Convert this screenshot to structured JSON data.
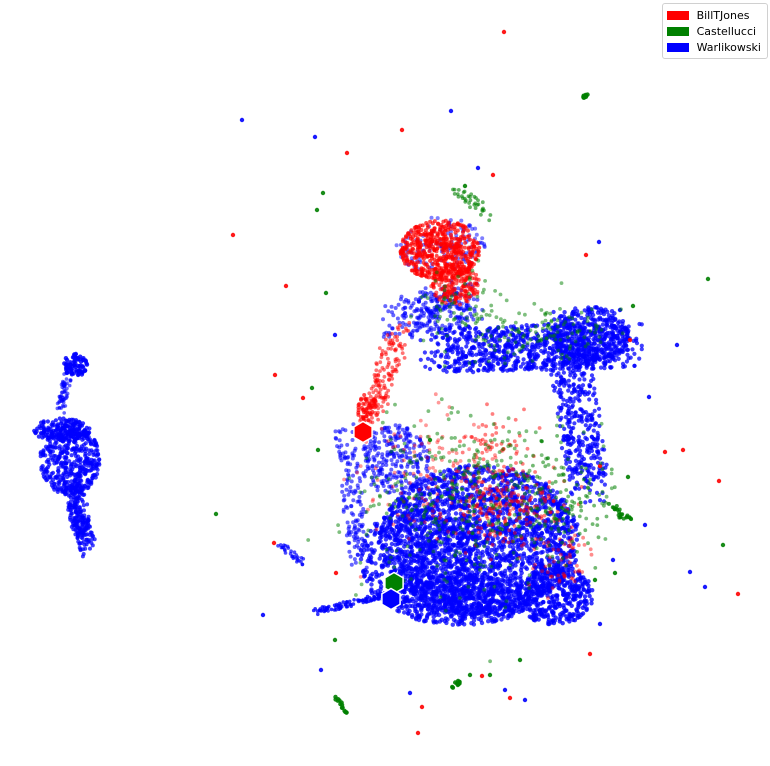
{
  "chart_data": {
    "type": "scatter",
    "xlabel": "",
    "ylabel": "",
    "axes_visible": false,
    "grid": false,
    "legend_position": "top-right",
    "legend": [
      {
        "name": "BillTJones",
        "color": "#ff0000"
      },
      {
        "name": "Castellucci",
        "color": "#008000"
      },
      {
        "name": "Warlikowski",
        "color": "#0000ff"
      }
    ],
    "series": [
      {
        "name": "BillTJones",
        "color": "#ff0000",
        "marker": "dot"
      },
      {
        "name": "Castellucci",
        "color": "#008000",
        "marker": "dot"
      },
      {
        "name": "Warlikowski",
        "color": "#0000ff",
        "marker": "dot"
      }
    ],
    "highlights": [
      {
        "series": "BillTJones",
        "marker": "hexagon",
        "color": "#ff0000"
      },
      {
        "series": "Castellucci",
        "marker": "hexagon",
        "color": "#008000"
      },
      {
        "series": "Warlikowski",
        "marker": "hexagon",
        "color": "#0000ff"
      }
    ]
  }
}
